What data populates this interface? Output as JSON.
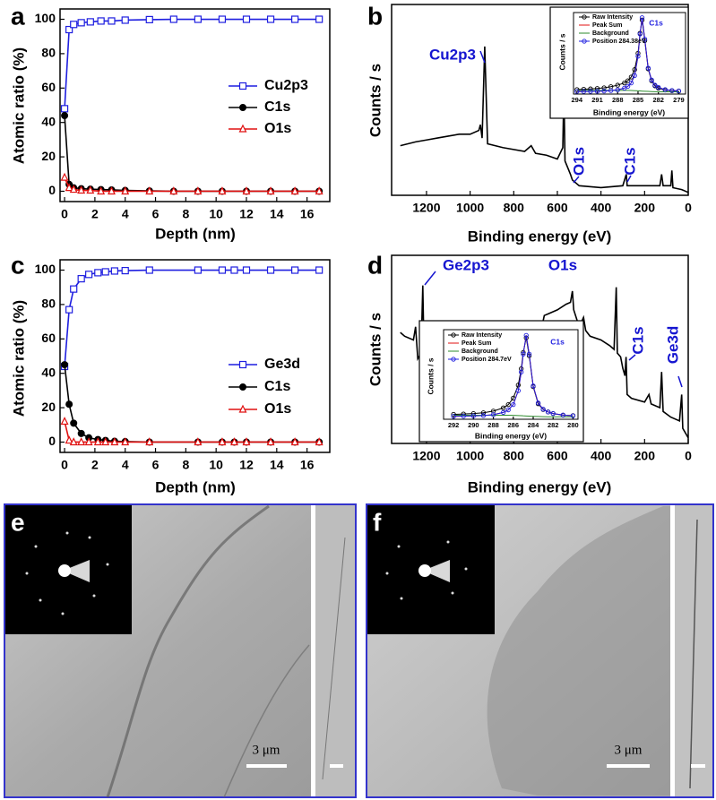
{
  "chart_data": [
    {
      "type": "line",
      "panel": "a",
      "x_label": "Depth (nm)",
      "y_label": "Atomic ratio (%)",
      "x": [
        0,
        0.3,
        0.6,
        1.1,
        1.7,
        2.4,
        3.1,
        4.0,
        5.6,
        7.2,
        8.8,
        10.4,
        12.0,
        13.6,
        15.2,
        16.8
      ],
      "series": [
        {
          "name": "Cu2p3",
          "color": "#1f1fe0",
          "marker": "square",
          "values": [
            48,
            94,
            97,
            98,
            98.5,
            99,
            99,
            99.5,
            99.8,
            100,
            100,
            100,
            100,
            100,
            100,
            100
          ]
        },
        {
          "name": "C1s",
          "color": "#000000",
          "marker": "circle",
          "values": [
            44,
            4,
            2,
            1.5,
            1.2,
            1,
            0.8,
            0.5,
            0.2,
            0,
            0,
            0,
            0,
            0,
            0,
            0
          ]
        },
        {
          "name": "O1s",
          "color": "#e01010",
          "marker": "triangle",
          "values": [
            8,
            2,
            1,
            0.5,
            0.5,
            0,
            0,
            0,
            0,
            0,
            0,
            0,
            0,
            0,
            0,
            0
          ]
        }
      ],
      "xlim": [
        -0.3,
        17.5
      ],
      "ylim": [
        -6,
        106
      ],
      "xticks": [
        0,
        2,
        4,
        6,
        8,
        10,
        12,
        14,
        16
      ],
      "yticks": [
        0,
        20,
        40,
        60,
        80,
        100
      ],
      "legend": "right"
    },
    {
      "type": "line",
      "panel": "b",
      "x_label": "Binding energy (eV)",
      "y_label": "Counts / s",
      "x": [
        1320,
        1250,
        1200,
        1150,
        1100,
        1050,
        1000,
        960,
        953,
        945,
        933,
        920,
        850,
        750,
        720,
        700,
        650,
        600,
        575,
        570,
        565,
        540,
        531,
        500,
        400,
        300,
        284,
        280,
        200,
        130,
        122,
        115,
        80,
        75,
        70,
        30,
        0
      ],
      "series": [
        {
          "color": "#000000",
          "values": [
            26,
            28,
            29,
            30,
            31,
            32,
            32,
            34,
            37,
            30,
            78,
            27,
            25,
            23,
            26,
            22,
            21,
            19,
            25,
            56,
            18,
            11,
            8,
            5,
            4,
            5,
            11,
            5,
            5,
            5,
            11,
            5,
            5,
            13,
            4,
            3,
            1.5
          ]
        }
      ],
      "annotations": [
        "Cu2p3",
        "O1s",
        "C1s"
      ],
      "xlim": [
        1360,
        0
      ],
      "ylim": [
        0,
        100
      ],
      "xticks": [
        1200,
        1000,
        800,
        600,
        400,
        200,
        0
      ]
    },
    {
      "type": "line",
      "title": "C1s",
      "x_label": "Binding energy (eV)",
      "y_label": "Counts / s",
      "x": [
        294,
        293,
        292,
        291,
        290,
        289,
        288,
        287,
        286.5,
        286,
        285.5,
        285,
        284.7,
        284.4,
        284,
        283.5,
        283,
        282.5,
        282,
        281,
        280,
        279
      ],
      "series": [
        {
          "name": "Raw Intensity",
          "color": "#000000",
          "marker": "open-circle",
          "values": [
            6,
            6.5,
            7,
            7.5,
            8.5,
            10,
            12,
            15,
            18,
            23,
            33,
            55,
            82,
            100,
            72,
            34,
            18,
            11,
            8,
            5.5,
            4.5,
            4
          ]
        },
        {
          "name": "Peak Sum",
          "color": "#e01010",
          "values": [
            3.4,
            3.5,
            3.6,
            3.8,
            4.1,
            4.7,
            5.7,
            8,
            10.4,
            15,
            25,
            51,
            81,
            103,
            74,
            35,
            19,
            12,
            9,
            6,
            4.8,
            4.2
          ]
        },
        {
          "name": "Background",
          "color": "#2e8b2e",
          "values": [
            5,
            5,
            5,
            5,
            5,
            5,
            5,
            5,
            5,
            4.8,
            4.6,
            4.4,
            4.2,
            4,
            3.8,
            3.6,
            3.4,
            3.2,
            3,
            3,
            3,
            3
          ]
        },
        {
          "name": "Position 284.38eV",
          "color": "#1f1fe0",
          "marker": "open-circle",
          "values": [
            3.4,
            3.5,
            3.6,
            3.8,
            4.1,
            4.7,
            5.7,
            8,
            10.4,
            15,
            25,
            51,
            81,
            103,
            74,
            35,
            19,
            12,
            9,
            6,
            4.8,
            4.2
          ]
        }
      ],
      "xlim": [
        294.5,
        278
      ],
      "ylim": [
        0,
        110
      ],
      "xticks": [
        294,
        291,
        288,
        285,
        282,
        279
      ]
    },
    {
      "type": "line",
      "panel": "c",
      "x_label": "Depth (nm)",
      "y_label": "Atomic ratio (%)",
      "x": [
        0,
        0.3,
        0.6,
        1.1,
        1.6,
        2.2,
        2.7,
        3.3,
        4.0,
        5.6,
        8.8,
        10.4,
        11.2,
        12.0,
        13.6,
        15.2,
        16.8
      ],
      "series": [
        {
          "name": "Ge3d",
          "color": "#1f1fe0",
          "marker": "square",
          "values": [
            44,
            77,
            89,
            95,
            97.5,
            98.5,
            99,
            99.5,
            99.7,
            100,
            100,
            100,
            100,
            100,
            100,
            100,
            100
          ]
        },
        {
          "name": "C1s",
          "color": "#000000",
          "marker": "circle",
          "values": [
            45,
            22,
            11,
            5,
            2.5,
            1.5,
            1,
            0.5,
            0.3,
            0,
            0,
            0,
            0,
            0,
            0,
            0,
            0
          ]
        },
        {
          "name": "O1s",
          "color": "#e01010",
          "marker": "triangle",
          "values": [
            12,
            1,
            0,
            0,
            0,
            0,
            0,
            0,
            0,
            0,
            0,
            0,
            0,
            0,
            0,
            0,
            0
          ]
        }
      ],
      "xlim": [
        -0.3,
        17.5
      ],
      "ylim": [
        -6,
        106
      ],
      "xticks": [
        0,
        2,
        4,
        6,
        8,
        10,
        12,
        14,
        16
      ],
      "yticks": [
        0,
        20,
        40,
        60,
        80,
        100
      ],
      "legend": "right"
    },
    {
      "type": "line",
      "panel": "d",
      "x_label": "Binding energy (eV)",
      "y_label": "Counts / s",
      "x": [
        1320,
        1300,
        1260,
        1250,
        1240,
        1225,
        1217,
        1210,
        1190,
        1150,
        1100,
        1060,
        1000,
        900,
        800,
        700,
        660,
        640,
        600,
        560,
        540,
        531,
        525,
        500,
        480,
        470,
        450,
        400,
        360,
        340,
        330,
        325,
        310,
        300,
        290,
        285,
        280,
        260,
        200,
        180,
        170,
        130,
        122,
        115,
        80,
        40,
        30,
        25,
        0
      ],
      "series": [
        {
          "color": "#000000",
          "values": [
            59,
            57,
            55,
            62,
            45,
            48,
            84,
            40,
            37,
            36,
            38,
            40,
            36,
            38,
            40,
            46,
            68,
            69,
            71,
            74,
            75,
            81,
            71,
            62,
            67,
            60,
            57,
            55,
            52,
            50,
            83,
            48,
            46,
            40,
            36,
            46,
            26,
            24,
            22,
            26,
            21,
            19,
            38,
            17,
            14,
            12,
            26,
            8,
            3
          ]
        }
      ],
      "annotations": [
        "Ge2p3",
        "O1s",
        "C1s",
        "Ge3d"
      ],
      "xlim": [
        1360,
        0
      ],
      "ylim": [
        0,
        100
      ],
      "xticks": [
        1200,
        1000,
        800,
        600,
        400,
        200,
        0
      ]
    },
    {
      "type": "line",
      "title": "C1s",
      "x_label": "Binding energy (eV)",
      "y_label": "Counts / s",
      "x": [
        292,
        291,
        290,
        289,
        288,
        287,
        286.5,
        286,
        285.5,
        285.2,
        285,
        284.7,
        284.4,
        284,
        283.5,
        283,
        282.5,
        282,
        281,
        280
      ],
      "series": [
        {
          "name": "Raw Intensity",
          "color": "#000000",
          "marker": "open-circle",
          "values": [
            6,
            6.5,
            7,
            8,
            10,
            14,
            18,
            26,
            42,
            62,
            82,
            100,
            78,
            40,
            19,
            12,
            9,
            7,
            5,
            4.5
          ]
        },
        {
          "name": "Peak Sum",
          "color": "#e01010",
          "values": [
            3.6,
            3.8,
            4.1,
            4.6,
            5.7,
            8.4,
            11.5,
            18,
            35,
            58,
            80,
            103,
            80,
            41,
            20,
            12.4,
            8.9,
            7,
            5.2,
            4.3
          ]
        },
        {
          "name": "Background",
          "color": "#2e8b2e",
          "values": [
            5,
            5,
            5,
            5,
            5,
            5,
            5,
            4.8,
            4.6,
            4.4,
            4.2,
            4,
            3.8,
            3.6,
            3.4,
            3.2,
            3,
            3,
            3,
            3
          ]
        },
        {
          "name": "Position 284.7eV",
          "color": "#1f1fe0",
          "marker": "open-circle",
          "values": [
            3.6,
            3.8,
            4.1,
            4.6,
            5.7,
            8.4,
            11.5,
            18,
            35,
            58,
            80,
            103,
            80,
            41,
            20,
            12.4,
            8.9,
            7,
            5.2,
            4.3
          ]
        }
      ],
      "xlim": [
        293,
        279.5
      ],
      "ylim": [
        0,
        110
      ],
      "xticks": [
        292,
        290,
        288,
        286,
        284,
        282,
        280
      ]
    }
  ],
  "images": [
    {
      "panel": "e",
      "scale_bar": "3 μm"
    },
    {
      "panel": "f",
      "scale_bar": "3 μm"
    }
  ]
}
